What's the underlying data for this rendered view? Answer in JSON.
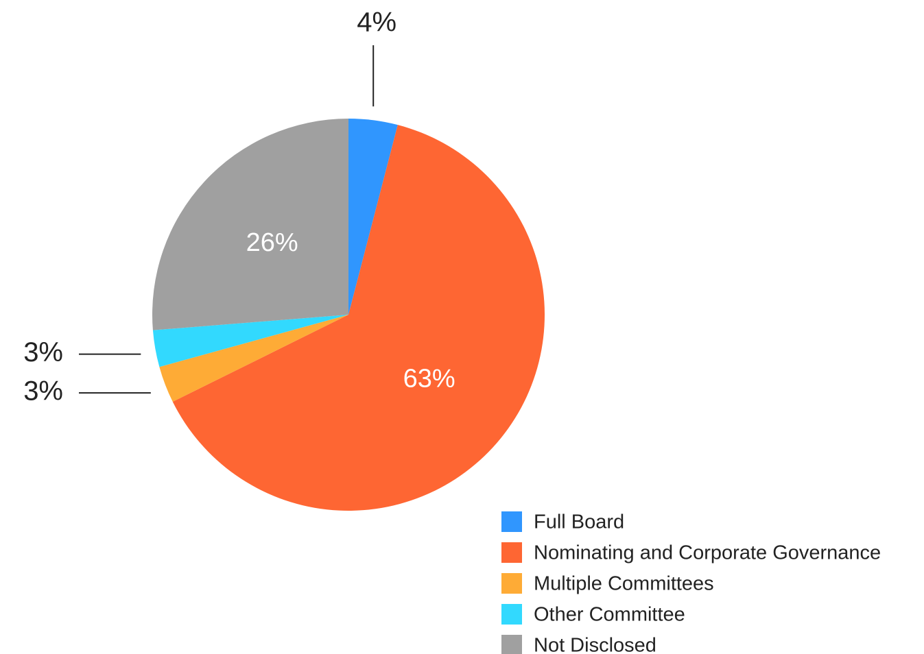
{
  "chart_data": {
    "type": "pie",
    "categories": [
      "Full Board",
      "Nominating and Corporate Governance",
      "Multiple Committees",
      "Other Committee",
      "Not Disclosed"
    ],
    "values": [
      4,
      63,
      3,
      3,
      26
    ],
    "value_labels": [
      "4%",
      "63%",
      "3%",
      "3%",
      "26%"
    ],
    "colors": [
      "#3096fe",
      "#fe6633",
      "#feab36",
      "#32d9fe",
      "#a0a0a0"
    ],
    "legend": "bottom-right"
  }
}
